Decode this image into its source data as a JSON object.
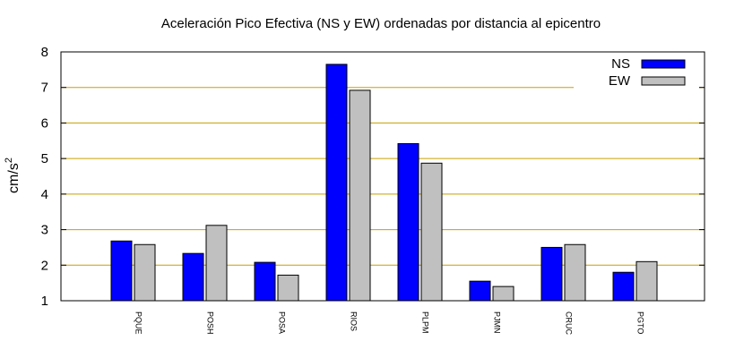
{
  "chart_data": {
    "type": "bar",
    "title": "Aceleración Pico Efectiva (NS y EW) ordenadas por distancia al epicentro",
    "ylabel": "cm/s",
    "ylabel_sup": "2",
    "xlabel": "",
    "categories": [
      "PQUE",
      "POSH",
      "POSA",
      "RIOS",
      "PLPM",
      "PJMN",
      "CRUC",
      "PGTO"
    ],
    "series": [
      {
        "name": "NS",
        "color": "#0000ff",
        "values": [
          2.68,
          2.33,
          2.08,
          7.65,
          5.42,
          1.55,
          2.5,
          1.8
        ]
      },
      {
        "name": "EW",
        "color": "#c0c0c0",
        "values": [
          2.58,
          3.12,
          1.72,
          6.92,
          4.87,
          1.4,
          2.58,
          2.1
        ]
      }
    ],
    "ylim": [
      1,
      8
    ],
    "yticks": [
      "1",
      "2",
      "3",
      "4",
      "5",
      "6",
      "7",
      "8"
    ],
    "grid": true,
    "grid_color": "#c8a000",
    "legend_position": "top-right"
  }
}
